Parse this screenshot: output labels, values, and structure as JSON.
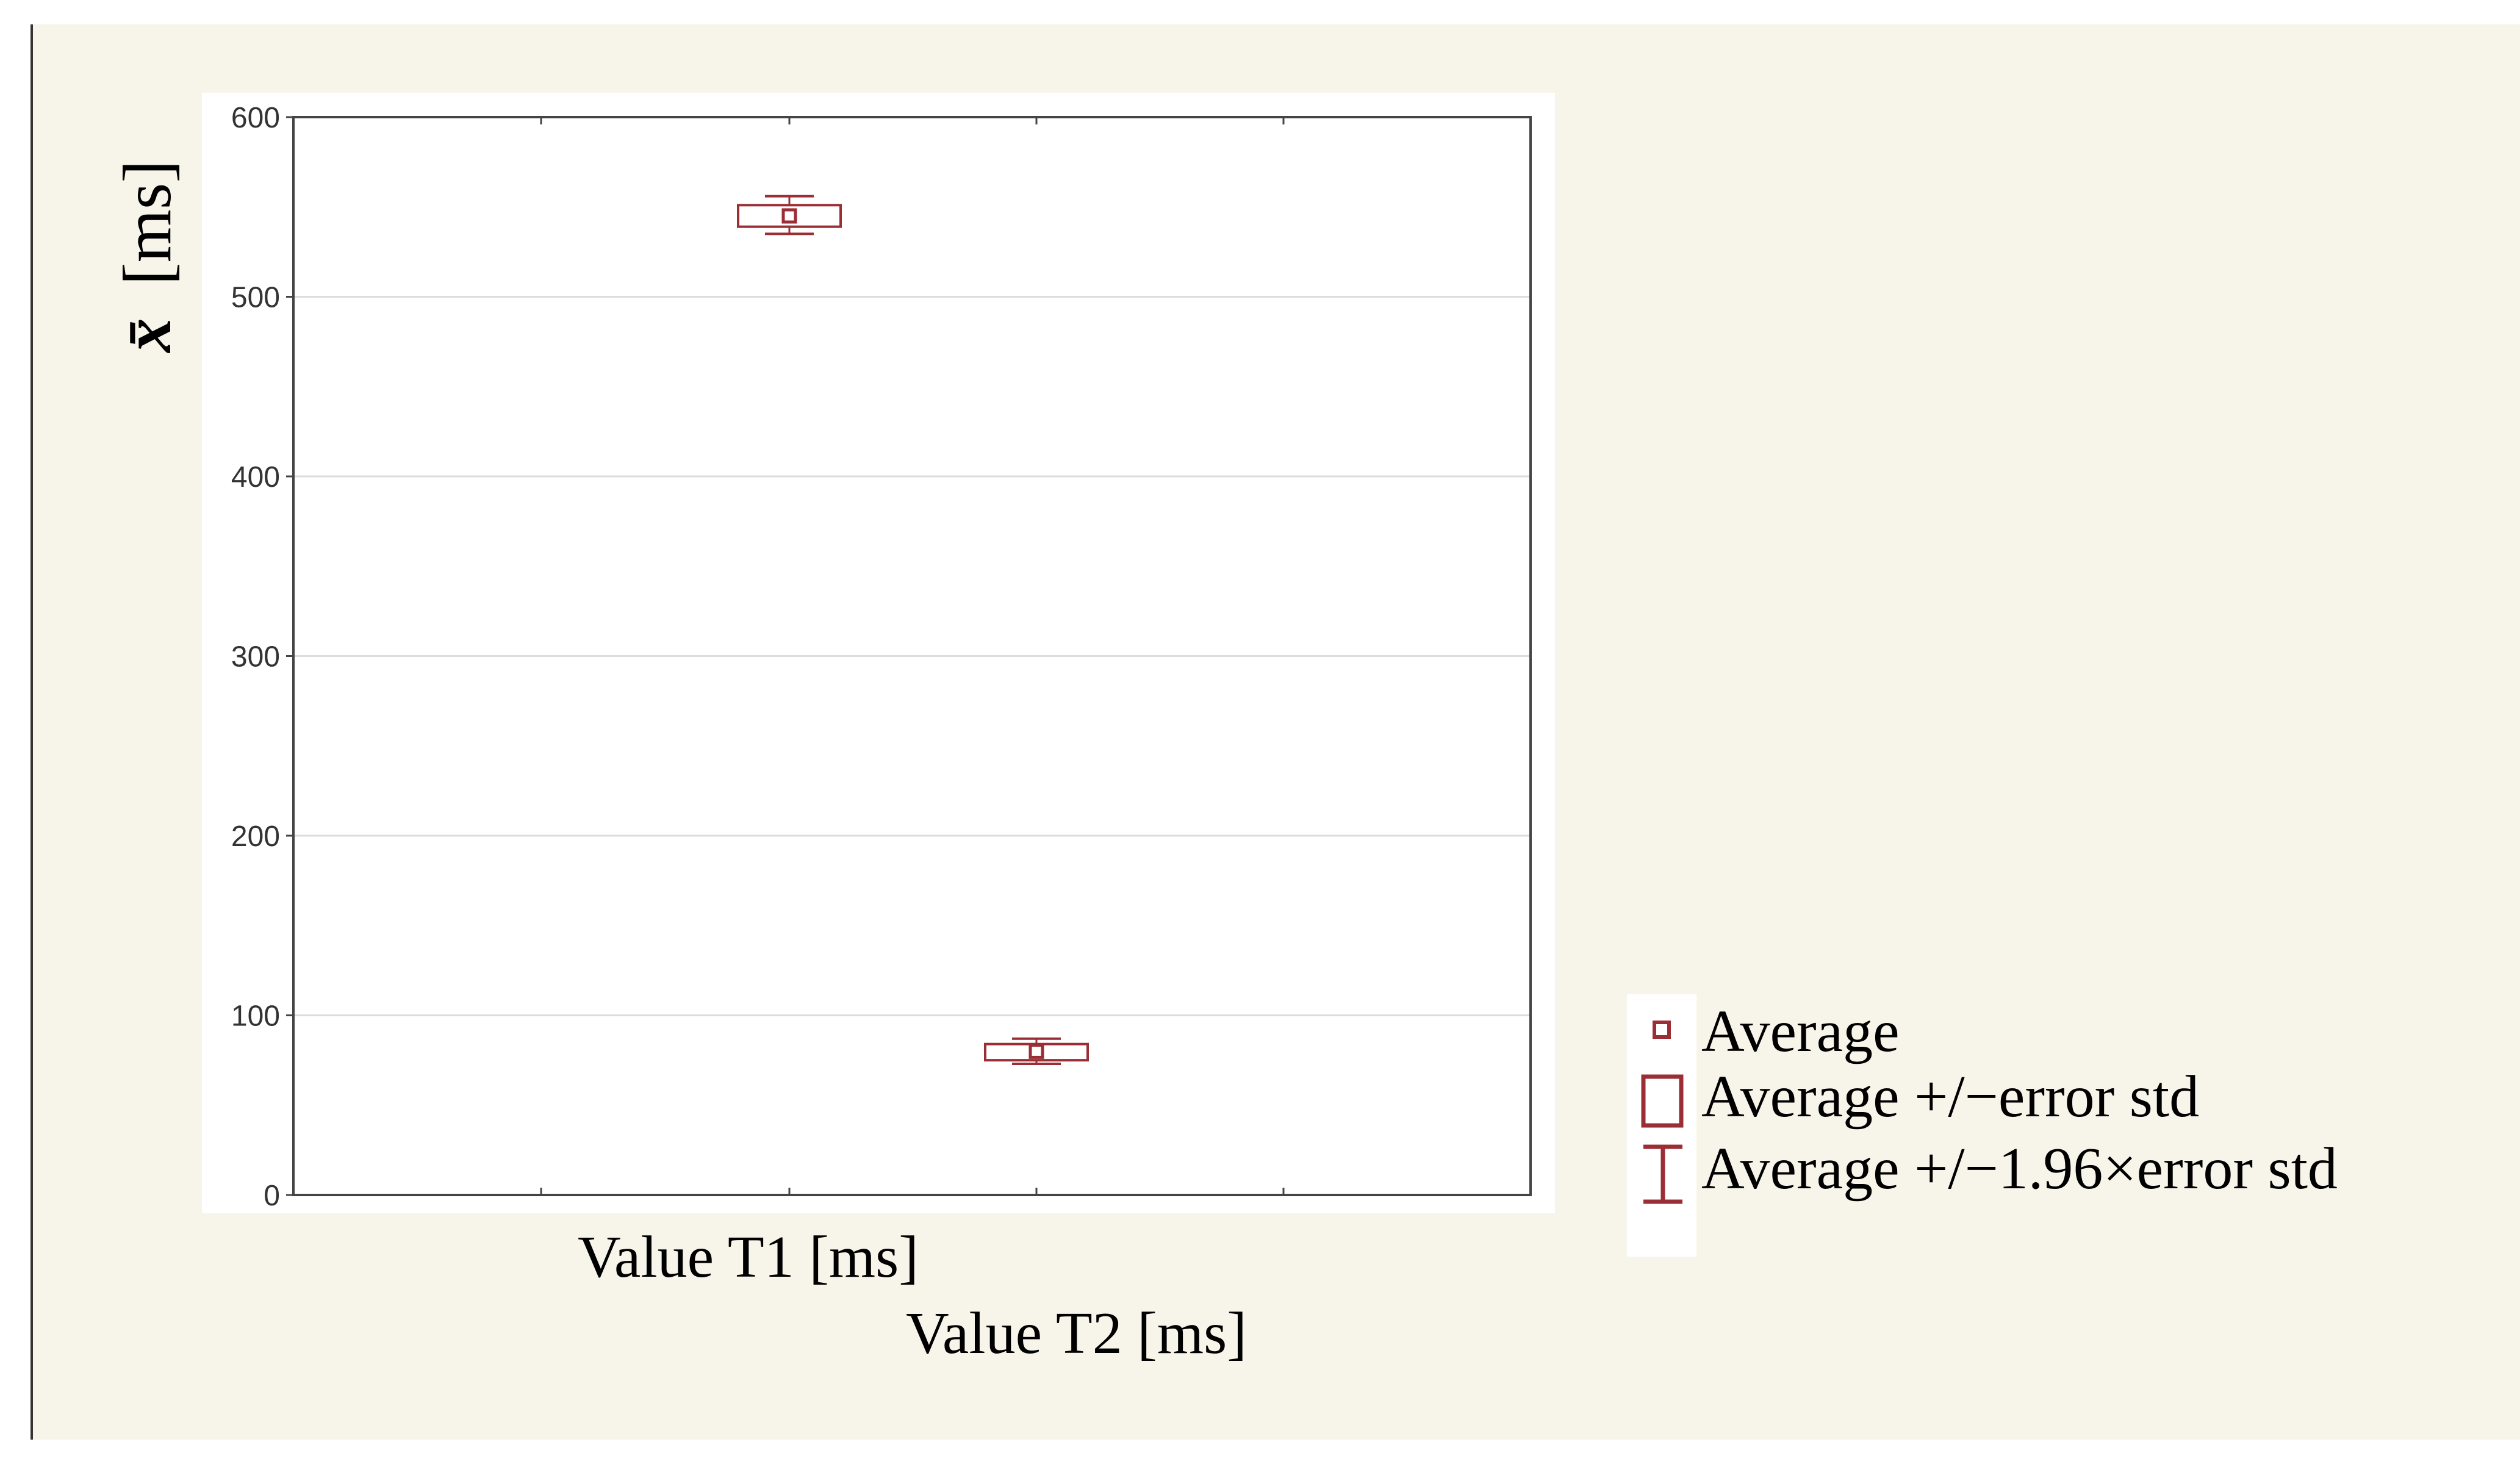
{
  "chart_data": {
    "type": "box",
    "ylabel_symbol": "x̄",
    "ylabel_unit": "[ms]",
    "ylim": [
      0,
      600
    ],
    "yticks": [
      0,
      100,
      200,
      300,
      400,
      500,
      600
    ],
    "grid": true,
    "categories": [
      "Value T1 [ms]",
      "Value T2 [ms]"
    ],
    "series": [
      {
        "category": "Value T1 [ms]",
        "mean": 545,
        "se_low": 539,
        "se_high": 551,
        "ci_low": 535,
        "ci_high": 556
      },
      {
        "category": "Value T2 [ms]",
        "mean": 80,
        "se_low": 75,
        "se_high": 84,
        "ci_low": 73,
        "ci_high": 87
      }
    ],
    "legend_position": "right",
    "legend": [
      "Average",
      "Average +/−error std",
      "Average +/−1.96×error std"
    ],
    "color": "#9b2d35"
  }
}
